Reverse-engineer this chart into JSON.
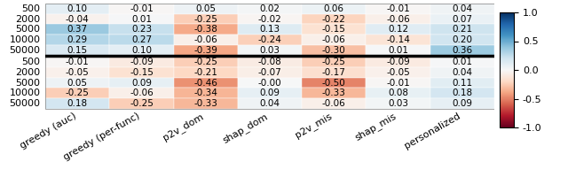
{
  "columns": [
    "greedy (auc)",
    "greedy (per-func)",
    "p2v_dom",
    "shap_dom",
    "p2v_mis",
    "shap_mis",
    "personalized"
  ],
  "row_labels_top": [
    "500",
    "2000",
    "5000",
    "10000",
    "50000"
  ],
  "row_labels_bottom": [
    "500",
    "2000",
    "5000",
    "10000",
    "50000"
  ],
  "data_top": [
    [
      0.1,
      -0.01,
      0.05,
      0.02,
      0.06,
      -0.01,
      0.04
    ],
    [
      -0.04,
      0.01,
      -0.25,
      -0.02,
      -0.22,
      -0.06,
      0.07
    ],
    [
      0.37,
      0.23,
      -0.38,
      0.13,
      -0.15,
      0.12,
      0.21
    ],
    [
      0.29,
      0.27,
      -0.06,
      -0.24,
      -0.06,
      -0.14,
      0.2
    ],
    [
      0.15,
      0.1,
      -0.39,
      0.03,
      -0.3,
      0.01,
      0.36
    ]
  ],
  "data_bottom": [
    [
      -0.01,
      -0.09,
      -0.25,
      -0.08,
      -0.25,
      -0.09,
      0.01
    ],
    [
      -0.05,
      -0.15,
      -0.21,
      -0.07,
      -0.17,
      -0.05,
      0.04
    ],
    [
      0.05,
      0.09,
      -0.46,
      -0.0,
      -0.5,
      -0.01,
      0.11
    ],
    [
      -0.25,
      -0.06,
      -0.34,
      0.09,
      -0.33,
      0.08,
      0.18
    ],
    [
      0.18,
      -0.25,
      -0.33,
      0.04,
      -0.06,
      0.03,
      0.09
    ]
  ],
  "cmap": "RdBu",
  "vmin": -1.0,
  "vmax": 1.0,
  "fontsize_cell": 7.5,
  "fontsize_label": 8,
  "colorbar_label_fontsize": 8
}
